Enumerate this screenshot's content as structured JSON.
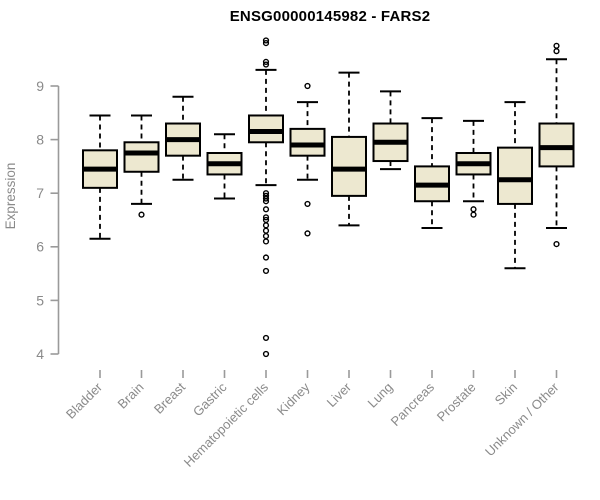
{
  "chart_data": {
    "type": "boxplot",
    "title": "ENSG00000145982 - FARS2",
    "ylabel": "Expression",
    "xlabel": "",
    "ylim": [
      4,
      9
    ],
    "yticks": [
      4,
      5,
      6,
      7,
      8,
      9
    ],
    "grid": false,
    "legend": false,
    "categories": [
      "Bladder",
      "Brain",
      "Breast",
      "Gastric",
      "Hematopoietic cells",
      "Kidney",
      "Liver",
      "Lung",
      "Pancreas",
      "Prostate",
      "Skin",
      "Unknown / Other"
    ],
    "series": [
      {
        "label": "Bladder",
        "whisker_low": 6.15,
        "q1": 7.1,
        "median": 7.45,
        "q3": 7.8,
        "whisker_high": 8.45,
        "outliers": []
      },
      {
        "label": "Brain",
        "whisker_low": 6.8,
        "q1": 7.4,
        "median": 7.75,
        "q3": 7.95,
        "whisker_high": 8.45,
        "outliers": [
          6.6
        ]
      },
      {
        "label": "Breast",
        "whisker_low": 7.25,
        "q1": 7.7,
        "median": 8.0,
        "q3": 8.3,
        "whisker_high": 8.8,
        "outliers": []
      },
      {
        "label": "Gastric",
        "whisker_low": 6.9,
        "q1": 7.35,
        "median": 7.55,
        "q3": 7.75,
        "whisker_high": 8.1,
        "outliers": []
      },
      {
        "label": "Hematopoietic cells",
        "whisker_low": 7.15,
        "q1": 7.95,
        "median": 8.15,
        "q3": 8.45,
        "whisker_high": 9.3,
        "outliers": [
          9.85,
          9.8,
          9.45,
          9.4,
          7.0,
          6.95,
          6.9,
          6.85,
          6.7,
          6.55,
          6.5,
          6.4,
          6.3,
          6.2,
          6.1,
          5.8,
          5.55,
          4.3,
          4.0
        ]
      },
      {
        "label": "Kidney",
        "whisker_low": 7.25,
        "q1": 7.7,
        "median": 7.9,
        "q3": 8.2,
        "whisker_high": 8.7,
        "outliers": [
          9.0,
          6.8,
          6.25
        ]
      },
      {
        "label": "Liver",
        "whisker_low": 6.4,
        "q1": 6.95,
        "median": 7.45,
        "q3": 8.05,
        "whisker_high": 9.25,
        "outliers": []
      },
      {
        "label": "Lung",
        "whisker_low": 7.45,
        "q1": 7.6,
        "median": 7.95,
        "q3": 8.3,
        "whisker_high": 8.9,
        "outliers": []
      },
      {
        "label": "Pancreas",
        "whisker_low": 6.35,
        "q1": 6.85,
        "median": 7.15,
        "q3": 7.5,
        "whisker_high": 8.4,
        "outliers": []
      },
      {
        "label": "Prostate",
        "whisker_low": 6.85,
        "q1": 7.35,
        "median": 7.55,
        "q3": 7.75,
        "whisker_high": 8.35,
        "outliers": [
          6.7,
          6.6
        ]
      },
      {
        "label": "Skin",
        "whisker_low": 5.6,
        "q1": 6.8,
        "median": 7.25,
        "q3": 7.85,
        "whisker_high": 8.7,
        "outliers": []
      },
      {
        "label": "Unknown / Other",
        "whisker_low": 6.35,
        "q1": 7.5,
        "median": 7.85,
        "q3": 8.3,
        "whisker_high": 9.5,
        "outliers": [
          9.75,
          9.65,
          6.05
        ]
      }
    ],
    "colors": {
      "box_fill": "#EDE8D0",
      "box_stroke": "#000000",
      "median": "#000000",
      "whisker": "#000000",
      "outlier_stroke": "#000000",
      "axis_line": "#9a9a9a",
      "axis_text": "#8a8a8a",
      "title_text": "#000000",
      "background": "#ffffff"
    }
  }
}
